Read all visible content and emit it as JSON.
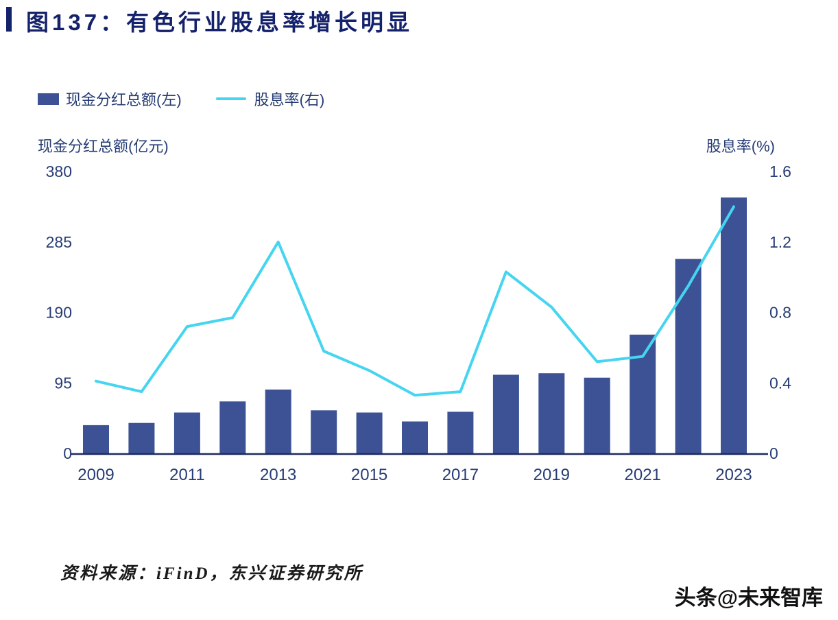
{
  "figure": {
    "title": "图137：有色行业股息率增长明显"
  },
  "legend": [
    {
      "label": "现金分红总额(左)",
      "type": "bar"
    },
    {
      "label": "股息率(右)",
      "type": "line"
    }
  ],
  "axes": {
    "left_title": "现金分红总额(亿元)",
    "right_title": "股息率(%)",
    "left_ticks": [
      "0",
      "95",
      "190",
      "285",
      "380"
    ],
    "right_ticks": [
      "0",
      "0.4",
      "0.8",
      "1.2",
      "1.6"
    ],
    "x_tick_labels": [
      "2009",
      "2011",
      "2013",
      "2015",
      "2017",
      "2019",
      "2021",
      "2023"
    ]
  },
  "chart_data": {
    "type": "bar+line",
    "categories": [
      2009,
      2010,
      2011,
      2012,
      2013,
      2014,
      2015,
      2016,
      2017,
      2018,
      2019,
      2020,
      2021,
      2022,
      2023
    ],
    "series": [
      {
        "name": "现金分红总额(左)",
        "type": "bar",
        "axis": "left",
        "values": [
          38,
          41,
          55,
          70,
          86,
          58,
          55,
          43,
          56,
          106,
          108,
          102,
          160,
          262,
          345
        ]
      },
      {
        "name": "股息率(右)",
        "type": "line",
        "axis": "right",
        "values": [
          0.41,
          0.35,
          0.72,
          0.77,
          1.2,
          0.58,
          0.47,
          0.33,
          0.35,
          1.03,
          0.83,
          0.52,
          0.55,
          0.95,
          1.4
        ]
      }
    ],
    "left_ylim": [
      0,
      380
    ],
    "right_ylim": [
      0,
      1.6
    ],
    "grid": false,
    "legend_position": "top-left",
    "title": "图137：有色行业股息率增长明显",
    "xlabel": "",
    "ylabel_left": "现金分红总额(亿元)",
    "ylabel_right": "股息率(%)"
  },
  "source": "资料来源：iFinD，东兴证券研究所",
  "watermark": "头条@未来智库",
  "colors": {
    "bar": "#3C5295",
    "line": "#45D5F0",
    "title": "#14216B",
    "text": "#263C74",
    "axis": "#1D2A5E",
    "source_text": "#1A1A1A",
    "watermark_text": "#111111"
  }
}
